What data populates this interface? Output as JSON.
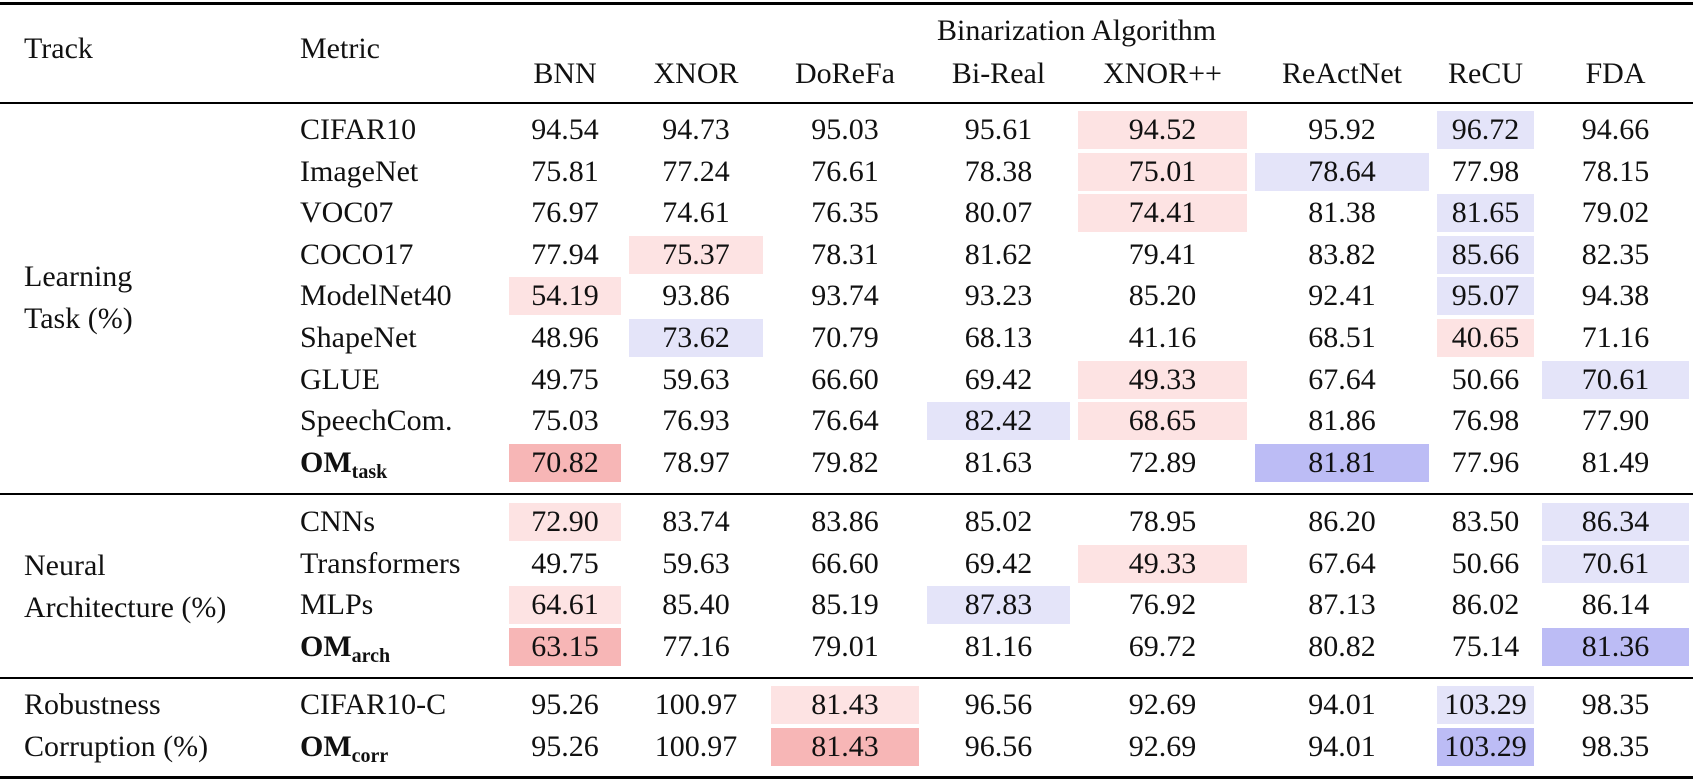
{
  "header": {
    "track_label": "Track",
    "metric_label": "Metric",
    "group_label": "Binarization Algorithm",
    "algorithms": [
      "BNN",
      "XNOR",
      "DoReFa",
      "Bi-Real",
      "XNOR++",
      "ReActNet",
      "ReCU",
      "FDA"
    ]
  },
  "colors": {
    "light_red": "#fde3e3",
    "strong_red": "#f7b6b6",
    "light_blue": "#e4e4f9",
    "strong_blue": "#bcbcf5"
  },
  "sections": [
    {
      "track": [
        "Learning",
        "Task (%)"
      ],
      "rows": [
        {
          "metric": "CIFAR10",
          "values": [
            "94.54",
            "94.73",
            "95.03",
            "95.61",
            "94.52",
            "95.92",
            "96.72",
            "94.66"
          ],
          "hl": {
            "4": "light_red",
            "6": "light_blue"
          }
        },
        {
          "metric": "ImageNet",
          "values": [
            "75.81",
            "77.24",
            "76.61",
            "78.38",
            "75.01",
            "78.64",
            "77.98",
            "78.15"
          ],
          "hl": {
            "4": "light_red",
            "5": "light_blue"
          }
        },
        {
          "metric": "VOC07",
          "values": [
            "76.97",
            "74.61",
            "76.35",
            "80.07",
            "74.41",
            "81.38",
            "81.65",
            "79.02"
          ],
          "hl": {
            "4": "light_red",
            "6": "light_blue"
          }
        },
        {
          "metric": "COCO17",
          "values": [
            "77.94",
            "75.37",
            "78.31",
            "81.62",
            "79.41",
            "83.82",
            "85.66",
            "82.35"
          ],
          "hl": {
            "1": "light_red",
            "6": "light_blue"
          }
        },
        {
          "metric": "ModelNet40",
          "values": [
            "54.19",
            "93.86",
            "93.74",
            "93.23",
            "85.20",
            "92.41",
            "95.07",
            "94.38"
          ],
          "hl": {
            "0": "light_red",
            "6": "light_blue"
          }
        },
        {
          "metric": "ShapeNet",
          "values": [
            "48.96",
            "73.62",
            "70.79",
            "68.13",
            "41.16",
            "68.51",
            "40.65",
            "71.16"
          ],
          "hl": {
            "6": "light_red",
            "1": "light_blue"
          }
        },
        {
          "metric": "GLUE",
          "values": [
            "49.75",
            "59.63",
            "66.60",
            "69.42",
            "49.33",
            "67.64",
            "50.66",
            "70.61"
          ],
          "hl": {
            "4": "light_red",
            "7": "light_blue"
          }
        },
        {
          "metric": "SpeechCom.",
          "values": [
            "75.03",
            "76.93",
            "76.64",
            "82.42",
            "68.65",
            "81.86",
            "76.98",
            "77.90"
          ],
          "hl": {
            "4": "light_red",
            "3": "light_blue"
          }
        },
        {
          "metric": "OM",
          "metric_sub": "task",
          "om": true,
          "values": [
            "70.82",
            "78.97",
            "79.82",
            "81.63",
            "72.89",
            "81.81",
            "77.96",
            "81.49"
          ],
          "hl": {
            "0": "strong_red",
            "5": "strong_blue"
          }
        }
      ]
    },
    {
      "track": [
        "Neural",
        "Architecture (%)"
      ],
      "rows": [
        {
          "metric": "CNNs",
          "values": [
            "72.90",
            "83.74",
            "83.86",
            "85.02",
            "78.95",
            "86.20",
            "83.50",
            "86.34"
          ],
          "hl": {
            "0": "light_red",
            "7": "light_blue"
          }
        },
        {
          "metric": "Transformers",
          "values": [
            "49.75",
            "59.63",
            "66.60",
            "69.42",
            "49.33",
            "67.64",
            "50.66",
            "70.61"
          ],
          "hl": {
            "4": "light_red",
            "7": "light_blue"
          }
        },
        {
          "metric": "MLPs",
          "values": [
            "64.61",
            "85.40",
            "85.19",
            "87.83",
            "76.92",
            "87.13",
            "86.02",
            "86.14"
          ],
          "hl": {
            "0": "light_red",
            "3": "light_blue"
          }
        },
        {
          "metric": "OM",
          "metric_sub": "arch",
          "om": true,
          "values": [
            "63.15",
            "77.16",
            "79.01",
            "81.16",
            "69.72",
            "80.82",
            "75.14",
            "81.36"
          ],
          "hl": {
            "0": "strong_red",
            "7": "strong_blue"
          }
        }
      ]
    },
    {
      "track": [
        "Robustness",
        "Corruption (%)"
      ],
      "rows": [
        {
          "metric": "CIFAR10-C",
          "values": [
            "95.26",
            "100.97",
            "81.43",
            "96.56",
            "92.69",
            "94.01",
            "103.29",
            "98.35"
          ],
          "hl": {
            "2": "light_red",
            "6": "light_blue"
          }
        },
        {
          "metric": "OM",
          "metric_sub": "corr",
          "om": true,
          "values": [
            "95.26",
            "100.97",
            "81.43",
            "96.56",
            "92.69",
            "94.01",
            "103.29",
            "98.35"
          ],
          "hl": {
            "2": "strong_red",
            "6": "strong_blue"
          }
        }
      ]
    }
  ]
}
